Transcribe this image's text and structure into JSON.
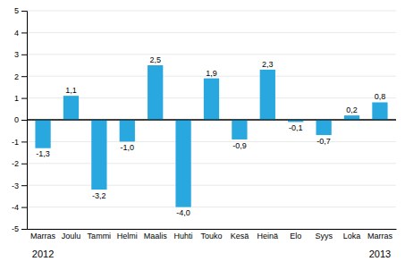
{
  "chart_data": {
    "type": "bar",
    "categories": [
      "Marras",
      "Joulu",
      "Tammi",
      "Helmi",
      "Maalis",
      "Huhti",
      "Touko",
      "Kesä",
      "Heinä",
      "Elo",
      "Syys",
      "Loka",
      "Marras"
    ],
    "values": [
      -1.3,
      1.1,
      -3.2,
      -1.0,
      2.5,
      -4.0,
      1.9,
      -0.9,
      2.3,
      -0.1,
      -0.7,
      0.2,
      0.8
    ],
    "value_labels": [
      "-1,3",
      "1,1",
      "-3,2",
      "-1,0",
      "2,5",
      "-4,0",
      "1,9",
      "-0,9",
      "2,3",
      "-0,1",
      "-0,7",
      "0,2",
      "0,8"
    ],
    "data_labels": true,
    "color": "#29a8e0",
    "ylim": [
      -5,
      5
    ],
    "yticks": [
      -5,
      -4,
      -3,
      -2,
      -1,
      0,
      1,
      2,
      3,
      4,
      5
    ],
    "grid": true,
    "annotations": [
      {
        "text": "2012",
        "x": 0
      },
      {
        "text": "2013",
        "x": 12
      }
    ]
  }
}
